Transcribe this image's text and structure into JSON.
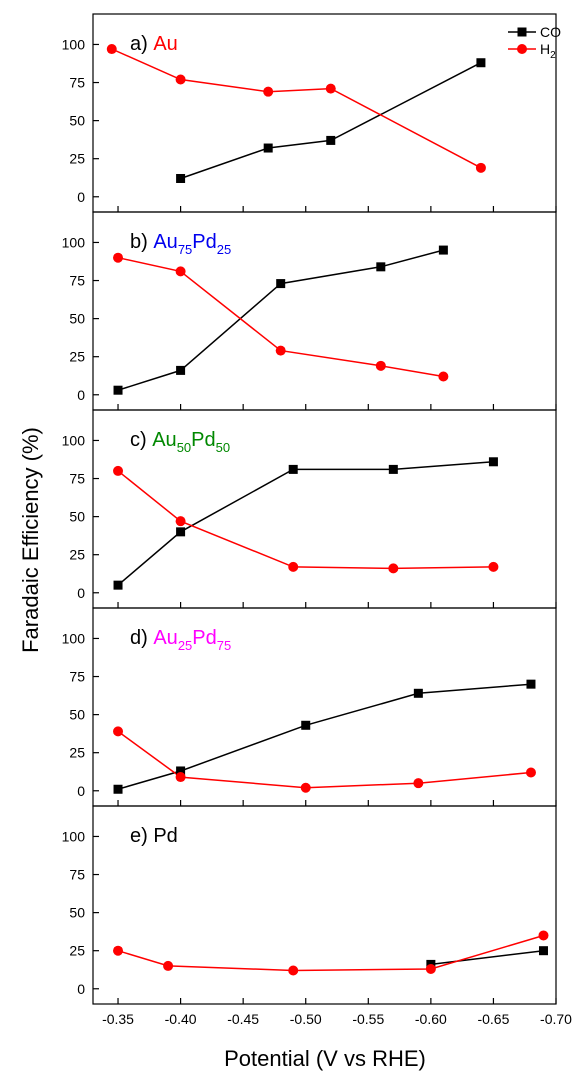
{
  "chart_data": {
    "type": "line",
    "xlabel": "Potential (V vs RHE)",
    "ylabel": "Faradaic Efficiency (%)",
    "xlim": [
      -0.33,
      -0.7
    ],
    "x_ticks": [
      "-0.35",
      "-0.40",
      "-0.45",
      "-0.50",
      "-0.55",
      "-0.60",
      "-0.65",
      "-0.70"
    ],
    "x_tick_values": [
      -0.35,
      -0.4,
      -0.45,
      -0.5,
      -0.55,
      -0.6,
      -0.65,
      -0.7
    ],
    "ylim": [
      -10,
      120
    ],
    "y_ticks": [
      "0",
      "25",
      "50",
      "75",
      "100"
    ],
    "y_tick_values": [
      0,
      25,
      50,
      75,
      100
    ],
    "legend": {
      "placement": "top-right",
      "entries": [
        {
          "name": "CO",
          "color": "#000000",
          "marker": "square"
        },
        {
          "name": "H",
          "sub": "2",
          "color": "#ff0000",
          "marker": "circle"
        }
      ]
    },
    "panels": [
      {
        "prefix": "a) ",
        "label_main": "Au",
        "label_color": "#ff0000",
        "series": [
          {
            "name": "CO",
            "color": "#000000",
            "marker": "square",
            "x": [
              -0.4,
              -0.47,
              -0.52,
              -0.64
            ],
            "y": [
              12,
              32,
              37,
              88
            ]
          },
          {
            "name": "H2",
            "color": "#ff0000",
            "marker": "circle",
            "x": [
              -0.345,
              -0.4,
              -0.47,
              -0.52,
              -0.64
            ],
            "y": [
              97,
              77,
              69,
              71,
              19
            ]
          }
        ]
      },
      {
        "prefix": "b) ",
        "label_main": "Au",
        "label_sub1": "75",
        "label_mid": "Pd",
        "label_sub2": "25",
        "label_color": "#0000ee",
        "series": [
          {
            "name": "CO",
            "color": "#000000",
            "marker": "square",
            "x": [
              -0.35,
              -0.4,
              -0.48,
              -0.56,
              -0.61
            ],
            "y": [
              3,
              16,
              73,
              84,
              95
            ]
          },
          {
            "name": "H2",
            "color": "#ff0000",
            "marker": "circle",
            "x": [
              -0.35,
              -0.4,
              -0.48,
              -0.56,
              -0.61
            ],
            "y": [
              90,
              81,
              29,
              19,
              12
            ]
          }
        ]
      },
      {
        "prefix": "c) ",
        "label_main": "Au",
        "label_sub1": "50",
        "label_mid": "Pd",
        "label_sub2": "50",
        "label_color": "#008800",
        "series": [
          {
            "name": "CO",
            "color": "#000000",
            "marker": "square",
            "x": [
              -0.35,
              -0.4,
              -0.49,
              -0.57,
              -0.65
            ],
            "y": [
              5,
              40,
              81,
              81,
              86
            ]
          },
          {
            "name": "H2",
            "color": "#ff0000",
            "marker": "circle",
            "x": [
              -0.35,
              -0.4,
              -0.49,
              -0.57,
              -0.65
            ],
            "y": [
              80,
              47,
              17,
              16,
              17
            ]
          }
        ]
      },
      {
        "prefix": "d) ",
        "label_main": "Au",
        "label_sub1": "25",
        "label_mid": "Pd",
        "label_sub2": "75",
        "label_color": "#ff00ff",
        "series": [
          {
            "name": "CO",
            "color": "#000000",
            "marker": "square",
            "x": [
              -0.35,
              -0.4,
              -0.5,
              -0.59,
              -0.68
            ],
            "y": [
              1,
              13,
              43,
              64,
              70
            ]
          },
          {
            "name": "H2",
            "color": "#ff0000",
            "marker": "circle",
            "x": [
              -0.35,
              -0.4,
              -0.5,
              -0.59,
              -0.68
            ],
            "y": [
              39,
              9,
              2,
              5,
              12
            ]
          }
        ]
      },
      {
        "prefix": "e) ",
        "label_main": "Pd",
        "label_color": "#000000",
        "series": [
          {
            "name": "CO",
            "color": "#000000",
            "marker": "square",
            "x": [
              -0.6,
              -0.69
            ],
            "y": [
              16,
              25
            ]
          },
          {
            "name": "H2",
            "color": "#ff0000",
            "marker": "circle",
            "x": [
              -0.35,
              -0.39,
              -0.49,
              -0.6,
              -0.69
            ],
            "y": [
              25,
              15,
              12,
              13,
              35
            ]
          }
        ]
      }
    ]
  }
}
